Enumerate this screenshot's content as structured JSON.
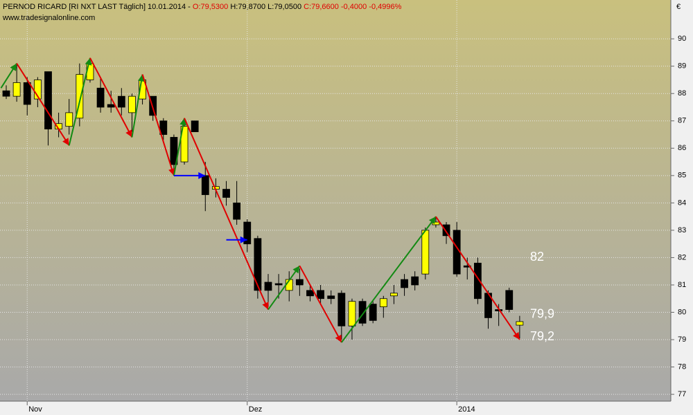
{
  "chart_data": {
    "type": "candlestick",
    "header_parts": [
      {
        "text": "PERNOD RICARD [RI NXT LAST Täglich] 10.01.2014 - ",
        "color": "#000000"
      },
      {
        "text": "O:79,5300",
        "color": "#e00000"
      },
      {
        "text": " H:79,8700 L:79,0500 ",
        "color": "#000000"
      },
      {
        "text": "C:79,6600 -0,4000 -0,4996%",
        "color": "#e00000"
      }
    ],
    "subtitle": "www.tradesignalonline.com",
    "y_axis_label": "€",
    "categories": [
      null,
      null,
      "Nov",
      null,
      null,
      null,
      null,
      null,
      null,
      null,
      null,
      null,
      null,
      null,
      null,
      null,
      null,
      null,
      null,
      null,
      null,
      null,
      null,
      "Dez",
      null,
      null,
      null,
      null,
      null,
      null,
      null,
      null,
      null,
      null,
      null,
      null,
      null,
      null,
      null,
      null,
      null,
      null,
      null,
      "2014",
      null,
      null,
      null,
      null,
      null,
      null
    ],
    "open": [
      88.1,
      87.9,
      88.4,
      87.8,
      88.8,
      86.7,
      86.8,
      87.1,
      88.5,
      88.2,
      87.6,
      87.9,
      87.3,
      87.8,
      87.9,
      87.0,
      86.4,
      85.5,
      87.0,
      85.0,
      84.5,
      84.5,
      84.0,
      83.3,
      82.7,
      81.1,
      81.05,
      80.8,
      81.2,
      80.8,
      80.8,
      80.6,
      80.7,
      79.5,
      80.4,
      80.3,
      80.2,
      80.6,
      81.2,
      81.3,
      81.4,
      83.2,
      83.2,
      83.0,
      81.7,
      81.8,
      80.7,
      80.1,
      80.8,
      79.53
    ],
    "high": [
      88.3,
      89.1,
      88.6,
      88.6,
      88.8,
      87.3,
      87.8,
      89.1,
      89.3,
      88.6,
      88.1,
      88.2,
      88.0,
      88.6,
      87.9,
      87.1,
      86.5,
      87.0,
      87.0,
      85.5,
      84.9,
      84.8,
      84.8,
      83.4,
      82.8,
      81.4,
      81.4,
      81.5,
      81.6,
      81.0,
      81.0,
      80.8,
      80.8,
      80.5,
      80.5,
      80.4,
      80.6,
      81.0,
      81.4,
      81.5,
      83.1,
      83.5,
      83.3,
      83.3,
      82.0,
      82.0,
      80.8,
      80.3,
      80.9,
      79.87
    ],
    "low": [
      87.8,
      87.7,
      87.2,
      87.5,
      86.1,
      86.4,
      86.5,
      86.8,
      88.4,
      87.3,
      87.3,
      87.2,
      86.6,
      87.6,
      87.0,
      86.3,
      85.1,
      85.4,
      86.6,
      83.7,
      84.2,
      83.9,
      83.2,
      82.2,
      80.5,
      80.2,
      80.5,
      80.4,
      80.6,
      80.4,
      80.3,
      80.3,
      79.0,
      79.0,
      79.5,
      79.6,
      79.8,
      80.3,
      80.6,
      80.8,
      81.2,
      83.1,
      82.5,
      81.3,
      81.2,
      80.3,
      79.4,
      79.5,
      80.0,
      79.05
    ],
    "close": [
      87.9,
      88.4,
      87.6,
      88.5,
      86.7,
      86.9,
      87.3,
      88.7,
      89.1,
      87.5,
      87.5,
      87.5,
      87.9,
      88.5,
      87.2,
      86.5,
      85.4,
      86.8,
      86.6,
      84.3,
      84.6,
      84.2,
      83.4,
      82.5,
      80.8,
      80.8,
      81.0,
      81.2,
      81.0,
      80.6,
      80.5,
      80.5,
      79.5,
      80.4,
      79.6,
      79.7,
      80.5,
      80.7,
      80.9,
      81.0,
      83.0,
      83.3,
      82.8,
      81.4,
      81.65,
      80.5,
      79.8,
      80.05,
      80.1,
      79.66
    ],
    "up_color": "#ffff00",
    "down_color": "#000000",
    "zigzag": {
      "x": [
        -0.5,
        1,
        6,
        8,
        12,
        13,
        16,
        17,
        25,
        28,
        32,
        41,
        49
      ],
      "y": [
        88.2,
        89.1,
        86.1,
        89.3,
        86.4,
        88.7,
        85.0,
        87.1,
        80.1,
        81.7,
        78.9,
        83.5,
        79.0
      ],
      "up_color": "#138a13",
      "down_color": "#e00000"
    },
    "signals": [
      {
        "x": [
          16,
          19
        ],
        "y": 85.0,
        "color": "#0000ff"
      },
      {
        "x": [
          21,
          23
        ],
        "y": 82.65,
        "color": "#0000ff"
      }
    ],
    "annotations": [
      {
        "text": "82",
        "y": 82
      },
      {
        "text": "79,9",
        "y": 79.92
      },
      {
        "text": "79,2",
        "y": 79.1
      }
    ],
    "ylim": [
      76.75,
      91.42
    ],
    "yticks": [
      77,
      78,
      79,
      80,
      81,
      82,
      83,
      84,
      85,
      86,
      87,
      88,
      89,
      90
    ],
    "grid": true
  }
}
